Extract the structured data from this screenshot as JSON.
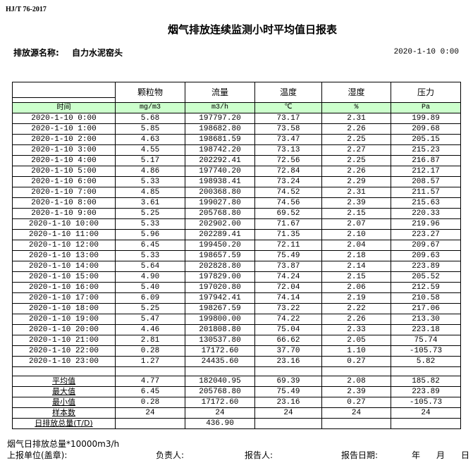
{
  "standard": "HJ/T  76-2017",
  "title": "烟气排放连续监测小时平均值日报表",
  "source_label": "排放源名称:",
  "source_value": "自力水泥窑头",
  "report_datetime": "2020-1-10 0:00",
  "columns": [
    "颗粒物",
    "流量",
    "温度",
    "湿度",
    "压力"
  ],
  "time_label": "时间",
  "units": [
    "mg/m3",
    "m3/h",
    "℃",
    "%",
    "Pa"
  ],
  "rows": [
    [
      "2020-1-10 0:00",
      "5.68",
      "197797.20",
      "73.17",
      "2.31",
      "199.89"
    ],
    [
      "2020-1-10 1:00",
      "5.85",
      "198682.80",
      "73.58",
      "2.26",
      "209.68"
    ],
    [
      "2020-1-10 2:00",
      "4.63",
      "198681.59",
      "73.47",
      "2.25",
      "205.15"
    ],
    [
      "2020-1-10 3:00",
      "4.55",
      "198742.20",
      "73.13",
      "2.27",
      "215.23"
    ],
    [
      "2020-1-10 4:00",
      "5.17",
      "202292.41",
      "72.56",
      "2.25",
      "216.87"
    ],
    [
      "2020-1-10 5:00",
      "4.86",
      "197740.20",
      "72.84",
      "2.26",
      "212.17"
    ],
    [
      "2020-1-10 6:00",
      "5.33",
      "198938.41",
      "73.24",
      "2.29",
      "208.57"
    ],
    [
      "2020-1-10 7:00",
      "4.85",
      "200368.80",
      "74.52",
      "2.31",
      "211.57"
    ],
    [
      "2020-1-10 8:00",
      "3.61",
      "199027.80",
      "74.56",
      "2.39",
      "215.63"
    ],
    [
      "2020-1-10 9:00",
      "5.25",
      "205768.80",
      "69.52",
      "2.15",
      "220.33"
    ],
    [
      "2020-1-10 10:00",
      "5.33",
      "202902.00",
      "71.67",
      "2.07",
      "219.96"
    ],
    [
      "2020-1-10 11:00",
      "5.96",
      "202289.41",
      "71.35",
      "2.10",
      "223.27"
    ],
    [
      "2020-1-10 12:00",
      "6.45",
      "199450.20",
      "72.11",
      "2.04",
      "209.67"
    ],
    [
      "2020-1-10 13:00",
      "5.33",
      "198657.59",
      "75.49",
      "2.18",
      "209.63"
    ],
    [
      "2020-1-10 14:00",
      "5.64",
      "202828.80",
      "73.87",
      "2.14",
      "223.89"
    ],
    [
      "2020-1-10 15:00",
      "4.90",
      "197829.00",
      "74.24",
      "2.15",
      "205.52"
    ],
    [
      "2020-1-10 16:00",
      "5.40",
      "197020.80",
      "72.04",
      "2.06",
      "212.59"
    ],
    [
      "2020-1-10 17:00",
      "6.09",
      "197942.41",
      "74.14",
      "2.19",
      "210.58"
    ],
    [
      "2020-1-10 18:00",
      "5.25",
      "198267.59",
      "73.22",
      "2.22",
      "217.06"
    ],
    [
      "2020-1-10 19:00",
      "5.47",
      "199800.00",
      "74.22",
      "2.26",
      "213.30"
    ],
    [
      "2020-1-10 20:00",
      "4.46",
      "201808.80",
      "75.04",
      "2.33",
      "223.18"
    ],
    [
      "2020-1-10 21:00",
      "2.81",
      "130537.80",
      "66.62",
      "2.05",
      "75.74"
    ],
    [
      "2020-1-10 22:00",
      "0.28",
      "17172.60",
      "37.70",
      "1.10",
      "-105.73"
    ],
    [
      "2020-1-10 23:00",
      "1.27",
      "24435.60",
      "23.16",
      "0.27",
      "5.82"
    ]
  ],
  "stats": [
    [
      "平均值",
      "4.77",
      "182040.95",
      "69.39",
      "2.08",
      "185.82"
    ],
    [
      "最大值",
      "6.45",
      "205768.80",
      "75.49",
      "2.39",
      "223.89"
    ],
    [
      "最小值",
      "0.28",
      "17172.60",
      "23.16",
      "0.27",
      "-105.73"
    ],
    [
      "样本数",
      "24",
      "24",
      "24",
      "24",
      "24"
    ],
    [
      "日排放总量(T/D)",
      "",
      "436.90",
      "",
      "",
      ""
    ]
  ],
  "footer": {
    "note": "烟气日排放总量*10000m3/h",
    "unit_label": "上报单位(盖章):",
    "responsible_label": "负责人:",
    "reporter_label": "报告人:",
    "date_label": "报告日期:",
    "year": "年",
    "month": "月",
    "day": "日"
  }
}
